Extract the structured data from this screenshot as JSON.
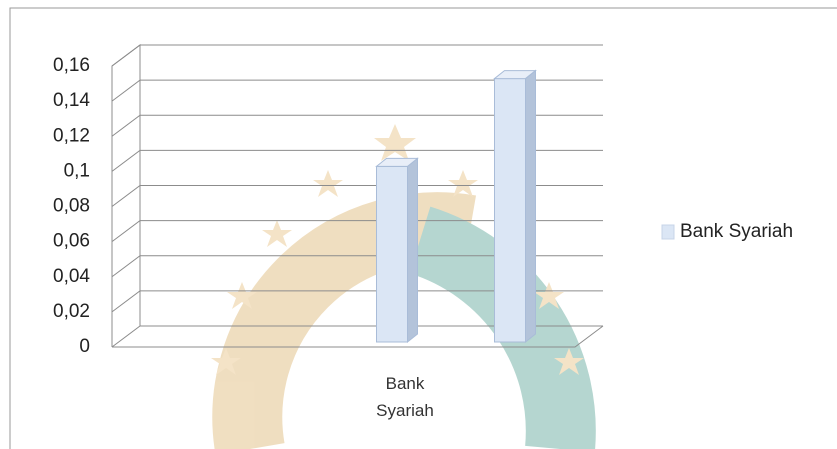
{
  "chart_data": {
    "type": "bar3d",
    "categories": [
      "Bank Syariah",
      null
    ],
    "series": [
      {
        "name": "Bank Syariah",
        "color": "#dbe6f5",
        "values": [
          0.1,
          0.15
        ]
      }
    ],
    "ylim": [
      0,
      0.16
    ],
    "yticks": [
      0,
      {
        "value": 0.02,
        "label": "0,02"
      },
      {
        "value": 0.04,
        "label": "0,04"
      },
      {
        "value": 0.06,
        "label": "0,06"
      },
      {
        "value": 0.08,
        "label": "0,08"
      },
      {
        "value": 0.1,
        "label": "0,1"
      },
      {
        "value": 0.12,
        "label": "0,12"
      },
      {
        "value": 0.14,
        "label": "0,14"
      },
      {
        "value": 0.16,
        "label": "0,16"
      }
    ],
    "grid": true,
    "legend": "right"
  }
}
